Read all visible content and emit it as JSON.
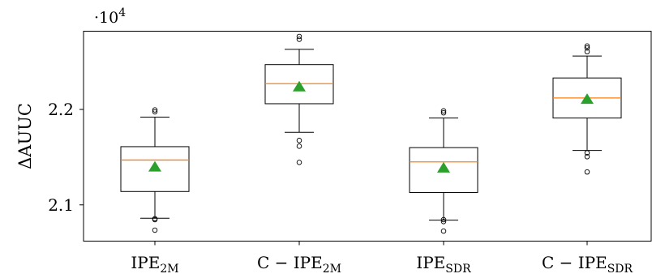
{
  "chart_data": {
    "type": "box",
    "ylabel": "ΔAUUC",
    "y_multiplier_label": "·10",
    "y_multiplier_exponent": "4",
    "ylim": [
      2.062,
      2.282
    ],
    "yticks": [
      2.1,
      2.2
    ],
    "ytick_labels": [
      "2.1",
      "2.2"
    ],
    "categories": [
      {
        "main": "IPE",
        "sub": "2M"
      },
      {
        "main": "C − IPE",
        "sub": "2M"
      },
      {
        "main": "IPE",
        "sub": "SDR"
      },
      {
        "main": "C − IPE",
        "sub": "SDR"
      }
    ],
    "boxes": [
      {
        "q1": 2.114,
        "median": 2.147,
        "mean": 2.14,
        "q3": 2.161,
        "whisker_low": 2.086,
        "whisker_high": 2.192,
        "outliers": [
          2.0735,
          2.0845,
          2.0855,
          2.1975,
          2.1995
        ]
      },
      {
        "q1": 2.206,
        "median": 2.227,
        "mean": 2.224,
        "q3": 2.247,
        "whisker_low": 2.176,
        "whisker_high": 2.263,
        "outliers": [
          2.1445,
          2.1615,
          2.1675,
          2.2735,
          2.2765
        ]
      },
      {
        "q1": 2.113,
        "median": 2.145,
        "mean": 2.139,
        "q3": 2.16,
        "whisker_low": 2.084,
        "whisker_high": 2.191,
        "outliers": [
          2.0725,
          2.0825,
          2.0845,
          2.1965,
          2.1985
        ]
      },
      {
        "q1": 2.191,
        "median": 2.212,
        "mean": 2.211,
        "q3": 2.233,
        "whisker_low": 2.157,
        "whisker_high": 2.256,
        "outliers": [
          2.1345,
          2.1505,
          2.1545,
          2.2605,
          2.2645,
          2.2665
        ]
      }
    ],
    "colors": {
      "box": "#000000",
      "median": "#ff7f0e",
      "mean": "#2ca02c"
    },
    "grid": false,
    "legend": "none"
  }
}
